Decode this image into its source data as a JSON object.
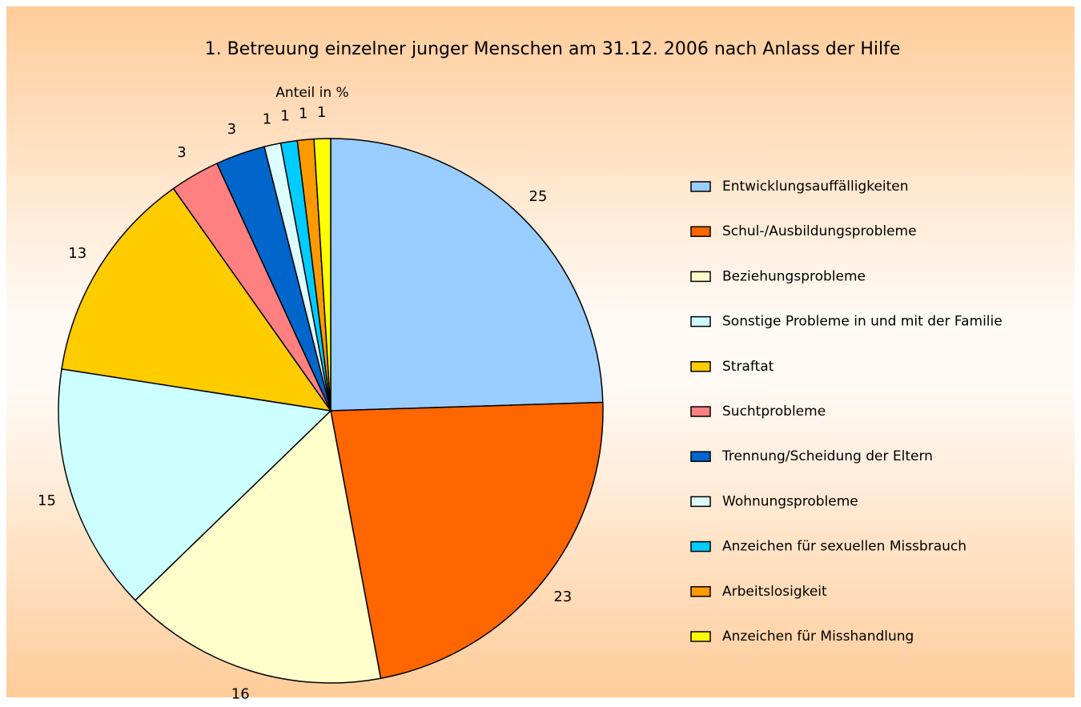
{
  "chart_data": {
    "type": "pie",
    "title": "1. Betreuung einzelner junger Menschen am 31.12. 2006 nach Anlass der Hilfe",
    "subtitle": "Anteil in %",
    "categories": [
      "Entwicklungsauffälligkeiten",
      "Schul-/Ausbildungsprobleme",
      "Beziehungsprobleme",
      "Sonstige Probleme in und mit der Familie",
      "Straftat",
      "Suchtprobleme",
      "Trennung/Scheidung der Eltern",
      "Wohnungsprobleme",
      "Anzeichen für sexuellen Missbrauch",
      "Arbeitslosigkeit",
      "Anzeichen für Misshandlung"
    ],
    "values": [
      25,
      23,
      16,
      15,
      13,
      3,
      3,
      1,
      1,
      1,
      1
    ],
    "colors": [
      "#99ccff",
      "#ff6600",
      "#ffffcc",
      "#ccffff",
      "#ffcc00",
      "#ff8080",
      "#0066cc",
      "#ddffff",
      "#00ccff",
      "#ff9900",
      "#ffff00"
    ],
    "legend": "right"
  }
}
